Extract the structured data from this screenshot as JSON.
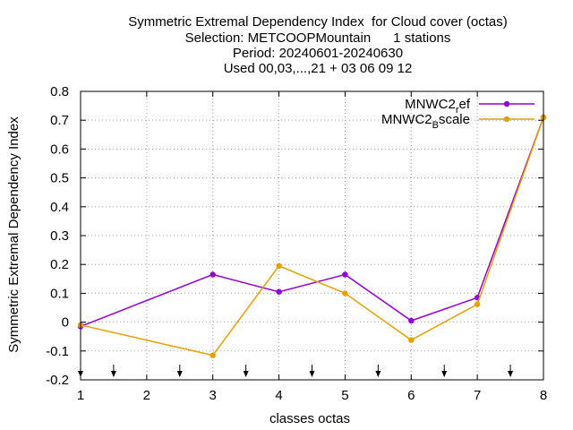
{
  "chart_data": {
    "type": "line",
    "title_lines": [
      "Symmetric Extremal Dependency Index  for Cloud cover (octas)",
      "Selection: METCOOPMountain      1 stations",
      "Period: 20240601-20240630",
      "Used 00,03,...,21 + 03 06 09 12"
    ],
    "xlabel": "classes octas",
    "ylabel": "Symmetric Extremal Dependency Index",
    "xlim": [
      1,
      8
    ],
    "ylim": [
      -0.2,
      0.8
    ],
    "xticks": [
      "1",
      "2",
      "3",
      "4",
      "5",
      "6",
      "7",
      "8"
    ],
    "yticks": [
      "-0.2",
      "-0.1",
      "0",
      "0.1",
      "0.2",
      "0.3",
      "0.4",
      "0.5",
      "0.6",
      "0.7",
      "0.8"
    ],
    "grid": true,
    "legend_position": "top-right",
    "series": [
      {
        "name": "MNWC2_ref",
        "legend_base": "MNWC2",
        "legend_sub": "r",
        "legend_rest": "ef",
        "color": "#9400d3",
        "x": [
          1,
          3,
          4,
          5,
          6,
          7,
          8
        ],
        "y": [
          -0.015,
          0.165,
          0.105,
          0.165,
          0.005,
          0.085,
          0.71
        ]
      },
      {
        "name": "MNWC2_Bscale",
        "legend_base": "MNWC2",
        "legend_sub": "B",
        "legend_rest": "scale",
        "color": "#e69f00",
        "x": [
          1,
          3,
          4,
          5,
          6,
          7,
          8
        ],
        "y": [
          -0.01,
          -0.115,
          0.195,
          0.1,
          -0.062,
          0.062,
          0.71
        ]
      }
    ],
    "arrow_x": [
      1,
      1.5,
      2.5,
      3.5,
      4.5,
      5.5,
      6.5,
      7.5
    ]
  }
}
